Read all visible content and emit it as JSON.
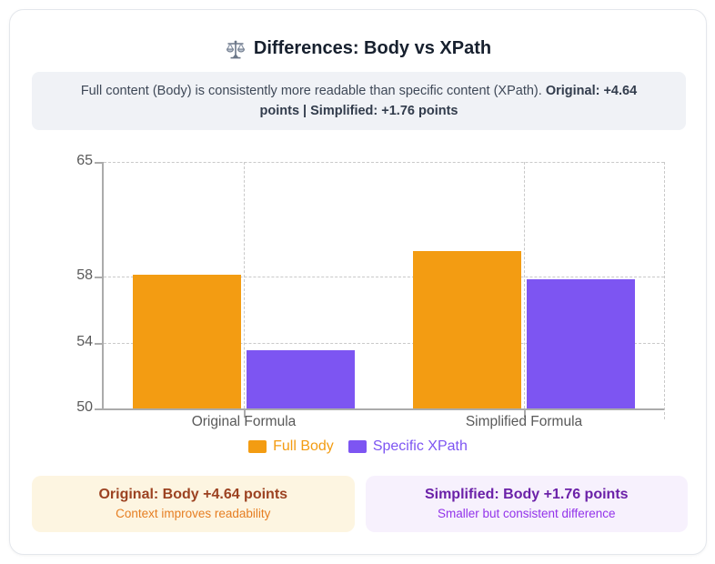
{
  "header": {
    "icon": "balance-scale-icon",
    "title": "Differences: Body vs XPath"
  },
  "summary": {
    "text": "Full content (Body) is consistently more readable than specific content (XPath). ",
    "highlight": "Original: +4.64 points | Simplified: +1.76 points"
  },
  "chart_data": {
    "type": "bar",
    "categories": [
      "Original Formula",
      "Simplified Formula"
    ],
    "series": [
      {
        "name": "Full Body",
        "color": "#F39C12",
        "values": [
          58.16,
          59.6
        ]
      },
      {
        "name": "Specific XPath",
        "color": "#7D55F2",
        "values": [
          53.52,
          57.84
        ]
      }
    ],
    "ylim": [
      50,
      65
    ],
    "yticks": [
      65,
      58,
      54,
      50
    ],
    "grid": "dashed",
    "legend_position": "bottom"
  },
  "insights": [
    {
      "title": "Original: Body +4.64 points",
      "subtitle": "Context improves readability",
      "bg": "#FDF5E1",
      "title_color": "#9C4221",
      "subtitle_color": "#E67E22"
    },
    {
      "title": "Simplified: Body +1.76 points",
      "subtitle": "Smaller but consistent difference",
      "bg": "#F7F1FD",
      "title_color": "#6B21A8",
      "subtitle_color": "#9333EA"
    }
  ]
}
